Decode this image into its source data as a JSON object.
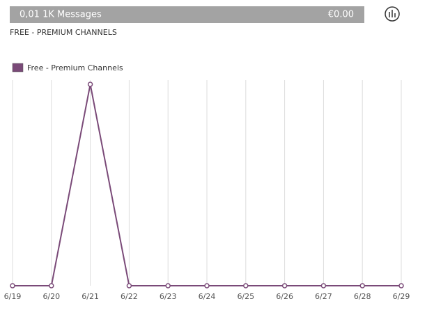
{
  "header": {
    "title": "0,01 1K Messages",
    "amount": "€0.00",
    "subtitle": "FREE - PREMIUM CHANNELS"
  },
  "chart_data": {
    "type": "line",
    "categories": [
      "6/19",
      "6/20",
      "6/21",
      "6/22",
      "6/23",
      "6/24",
      "6/25",
      "6/26",
      "6/27",
      "6/28",
      "6/29"
    ],
    "series": [
      {
        "name": "Free - Premium Channels",
        "color": "#7a4a78",
        "values": [
          0,
          0,
          1,
          0,
          0,
          0,
          0,
          0,
          0,
          0,
          0
        ]
      }
    ],
    "ylim": [
      0,
      1
    ],
    "grid": true,
    "legend": "top-left"
  }
}
